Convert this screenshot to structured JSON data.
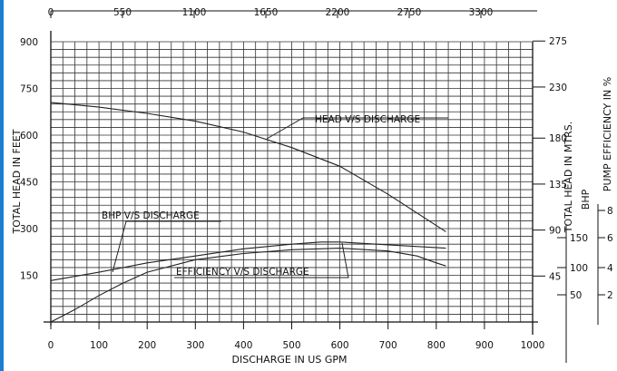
{
  "chart_data": {
    "type": "line",
    "xlabel": "DISCHARGE IN US GPM",
    "ylabel_left": "TOTAL HEAD IN FEET",
    "ylabel_right": "TOTAL HEAD IN MTRS.",
    "ylabel_bhp": "BHP",
    "ylabel_eff": "PUMP EFFICIENCY IN %",
    "x_ticks": [
      "0",
      "100",
      "200",
      "300",
      "400",
      "500",
      "600",
      "700",
      "800",
      "900",
      "1000"
    ],
    "x_top_ticks": [
      "0",
      "550",
      "1100",
      "1650",
      "2200",
      "2750",
      "3300"
    ],
    "y_left_ticks": [
      "150",
      "300",
      "450",
      "600",
      "750",
      "900"
    ],
    "y_right_ticks": [
      "45",
      "90",
      "135",
      "180",
      "230",
      "275"
    ],
    "bhp_ticks": [
      "50",
      "100",
      "150"
    ],
    "eff_ticks": [
      "2",
      "4",
      "6",
      "8"
    ],
    "xlim": [
      0,
      1000
    ],
    "ylim": [
      0,
      900
    ],
    "grid": true,
    "series": [
      {
        "name": "HEAD V/S DISCHARGE",
        "x": [
          0,
          100,
          200,
          300,
          400,
          500,
          600,
          700,
          780,
          820
        ],
        "y": [
          705,
          690,
          670,
          645,
          610,
          560,
          500,
          410,
          330,
          290
        ]
      },
      {
        "name": "BHP V/S DISCHARGE",
        "x": [
          0,
          100,
          200,
          300,
          400,
          500,
          560,
          600,
          700,
          820
        ],
        "y": [
          133,
          160,
          190,
          212,
          235,
          250,
          257,
          257,
          248,
          237
        ]
      },
      {
        "name": "EFFICIENCY V/S DISCHARGE",
        "x": [
          0,
          50,
          100,
          150,
          200,
          300,
          400,
          500,
          600,
          700,
          760,
          800,
          820
        ],
        "y": [
          0,
          40,
          85,
          125,
          160,
          200,
          220,
          232,
          237,
          228,
          212,
          190,
          180
        ]
      }
    ],
    "annotations": [
      "HEAD V/S DISCHARGE",
      "BHP V/S DISCHARGE",
      "EFFICIENCY V/S DISCHARGE"
    ]
  }
}
